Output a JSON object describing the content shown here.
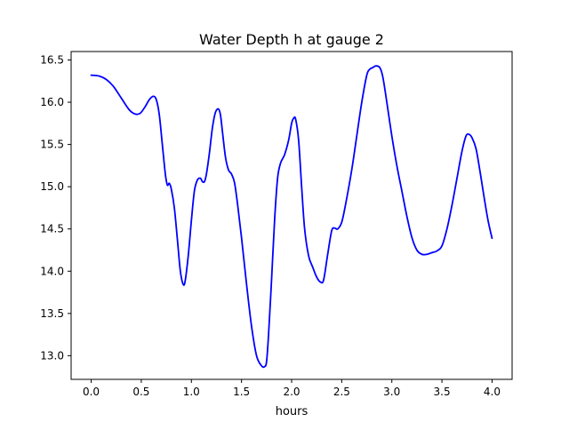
{
  "chart_data": {
    "type": "line",
    "title": "Water Depth h at gauge 2",
    "xlabel": "hours",
    "ylabel": "",
    "xlim": [
      -0.2,
      4.2
    ],
    "ylim": [
      12.72,
      16.6
    ],
    "xticks": [
      0.0,
      0.5,
      1.0,
      1.5,
      2.0,
      2.5,
      3.0,
      3.5,
      4.0
    ],
    "xtick_labels": [
      "0.0",
      "0.5",
      "1.0",
      "1.5",
      "2.0",
      "2.5",
      "3.0",
      "3.5",
      "4.0"
    ],
    "yticks": [
      13.0,
      13.5,
      14.0,
      14.5,
      15.0,
      15.5,
      16.0,
      16.5
    ],
    "ytick_labels": [
      "13.0",
      "13.5",
      "14.0",
      "14.5",
      "15.0",
      "15.5",
      "16.0",
      "16.5"
    ],
    "grid": false,
    "line_color": "#0000ff",
    "series": [
      {
        "x": [
          0.0,
          0.08,
          0.15,
          0.22,
          0.3,
          0.38,
          0.44,
          0.49,
          0.54,
          0.58,
          0.62,
          0.65,
          0.68,
          0.71,
          0.74,
          0.76,
          0.78,
          0.8,
          0.83,
          0.86,
          0.89,
          0.92,
          0.94,
          0.97,
          1.0,
          1.03,
          1.06,
          1.09,
          1.11,
          1.13,
          1.15,
          1.18,
          1.21,
          1.24,
          1.27,
          1.29,
          1.31,
          1.34,
          1.37,
          1.4,
          1.43,
          1.46,
          1.5,
          1.55,
          1.6,
          1.65,
          1.7,
          1.73,
          1.75,
          1.77,
          1.8,
          1.83,
          1.86,
          1.89,
          1.93,
          1.97,
          2.0,
          2.02,
          2.04,
          2.07,
          2.1,
          2.13,
          2.17,
          2.21,
          2.25,
          2.29,
          2.32,
          2.36,
          2.4,
          2.43,
          2.46,
          2.5,
          2.54,
          2.6,
          2.65,
          2.7,
          2.75,
          2.78,
          2.81,
          2.84,
          2.88,
          2.91,
          2.95,
          3.0,
          3.05,
          3.1,
          3.15,
          3.2,
          3.25,
          3.3,
          3.35,
          3.4,
          3.45,
          3.5,
          3.55,
          3.6,
          3.65,
          3.7,
          3.74,
          3.77,
          3.8,
          3.84,
          3.88,
          3.92,
          3.96,
          4.0
        ],
        "y": [
          16.32,
          16.31,
          16.27,
          16.19,
          16.05,
          15.91,
          15.86,
          15.87,
          15.95,
          16.03,
          16.07,
          16.03,
          15.85,
          15.5,
          15.15,
          15.02,
          15.04,
          14.97,
          14.75,
          14.38,
          14.0,
          13.84,
          13.9,
          14.2,
          14.6,
          14.95,
          15.08,
          15.1,
          15.06,
          15.06,
          15.15,
          15.4,
          15.7,
          15.88,
          15.92,
          15.85,
          15.65,
          15.35,
          15.2,
          15.15,
          15.05,
          14.8,
          14.4,
          13.85,
          13.35,
          13.0,
          12.88,
          12.87,
          12.93,
          13.25,
          13.9,
          14.6,
          15.1,
          15.28,
          15.38,
          15.55,
          15.75,
          15.81,
          15.8,
          15.55,
          15.0,
          14.5,
          14.18,
          14.05,
          13.93,
          13.87,
          13.9,
          14.2,
          14.48,
          14.51,
          14.5,
          14.58,
          14.8,
          15.2,
          15.6,
          16.0,
          16.32,
          16.39,
          16.41,
          16.43,
          16.41,
          16.3,
          16.0,
          15.6,
          15.25,
          14.95,
          14.65,
          14.4,
          14.25,
          14.2,
          14.2,
          14.22,
          14.24,
          14.3,
          14.5,
          14.78,
          15.1,
          15.42,
          15.6,
          15.62,
          15.58,
          15.45,
          15.18,
          14.88,
          14.6,
          14.39
        ]
      }
    ]
  }
}
